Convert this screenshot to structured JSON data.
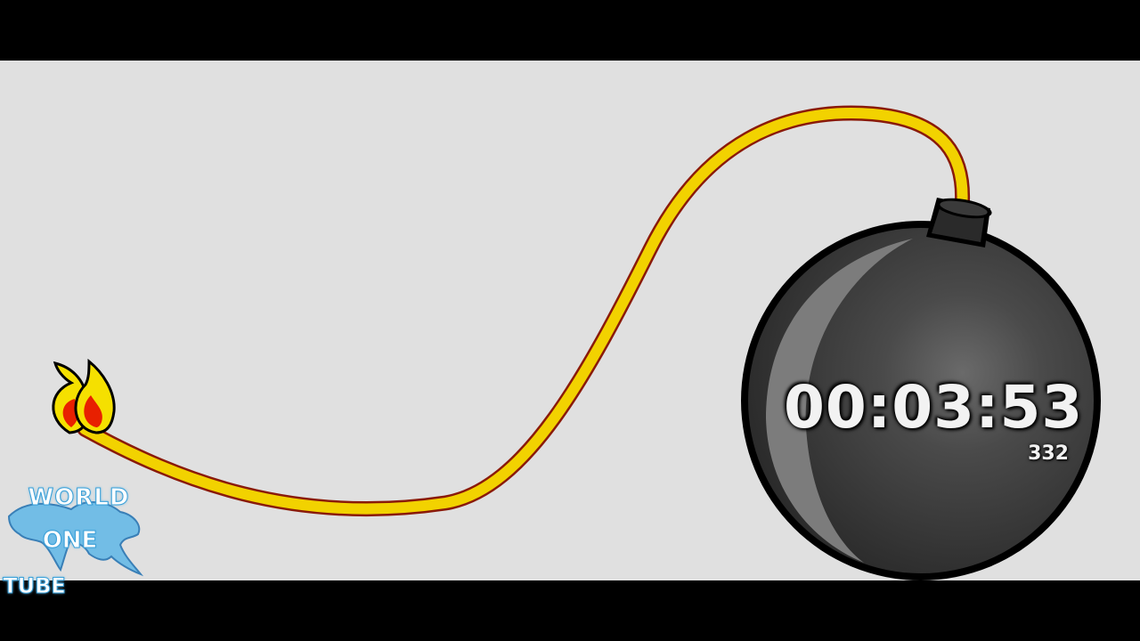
{
  "timer": {
    "display": "00:03:53",
    "subcount": "332"
  },
  "logo": {
    "line1": "WORLD",
    "line2": "ONE",
    "line3": "TUBE"
  },
  "colors": {
    "background": "#e0e0e0",
    "letterbox": "#000000",
    "fuse": "#f2d200",
    "fuse_outline": "#8a1a0a",
    "bomb": "#3c3c3c",
    "flame_outer": "#f5e000",
    "flame_inner": "#e82000",
    "logo_blue": "#3aa0d8"
  },
  "icons": {
    "bomb": "bomb-icon",
    "flame": "flame-icon",
    "logo": "world-map-logo"
  }
}
